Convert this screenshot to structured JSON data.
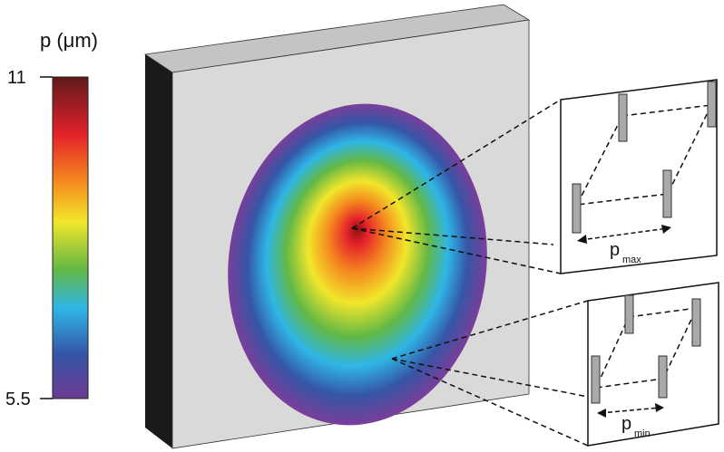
{
  "colorbar": {
    "label": "p (μm)",
    "max": "11",
    "min": "5.5"
  },
  "insets": [
    {
      "symbol": "p",
      "subscript": "max"
    },
    {
      "symbol": "p",
      "subscript": "min"
    }
  ]
}
